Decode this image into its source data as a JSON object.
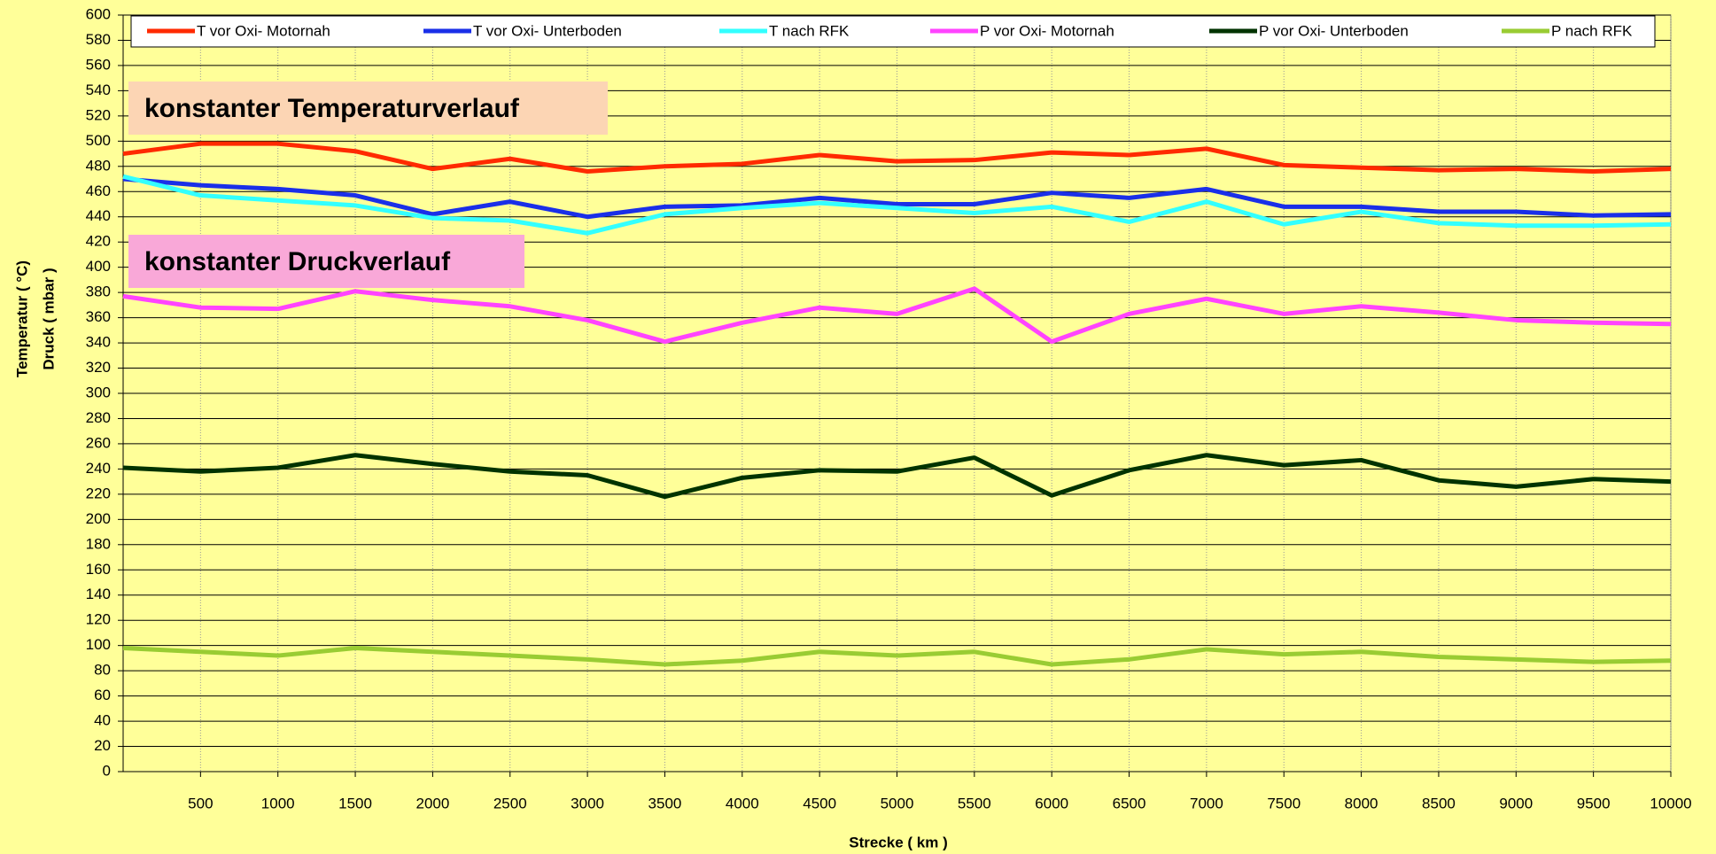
{
  "chart_data": {
    "type": "line",
    "x": [
      0,
      500,
      1000,
      1500,
      2000,
      2500,
      3000,
      3500,
      4000,
      4500,
      5000,
      5500,
      6000,
      6500,
      7000,
      7500,
      8000,
      8500,
      9000,
      9500,
      10000
    ],
    "series": [
      {
        "name": "T vor Oxi- Motornah",
        "color": "#ff2a00",
        "values": [
          490,
          498,
          498,
          492,
          478,
          486,
          476,
          480,
          482,
          489,
          484,
          485,
          491,
          489,
          494,
          481,
          479,
          477,
          478,
          476,
          478
        ]
      },
      {
        "name": "T vor Oxi- Unterboden",
        "color": "#1a2fe8",
        "values": [
          470,
          465,
          462,
          457,
          442,
          452,
          440,
          448,
          449,
          455,
          450,
          450,
          459,
          455,
          462,
          448,
          448,
          444,
          444,
          441,
          442
        ]
      },
      {
        "name": "T nach RFK",
        "color": "#33ffff",
        "values": [
          472,
          457,
          453,
          449,
          439,
          437,
          427,
          442,
          447,
          451,
          447,
          443,
          448,
          436,
          452,
          434,
          444,
          435,
          433,
          433,
          434
        ]
      },
      {
        "name": "P vor Oxi- Motornah",
        "color": "#ff44ff",
        "values": [
          377,
          368,
          367,
          381,
          374,
          369,
          358,
          341,
          356,
          368,
          363,
          383,
          341,
          363,
          375,
          363,
          369,
          364,
          358,
          356,
          355
        ]
      },
      {
        "name": "P vor Oxi- Unterboden",
        "color": "#003300",
        "values": [
          241,
          238,
          241,
          251,
          244,
          238,
          235,
          218,
          233,
          239,
          238,
          249,
          219,
          239,
          251,
          243,
          247,
          231,
          226,
          232,
          230
        ]
      },
      {
        "name": "P nach RFK",
        "color": "#99cc33",
        "values": [
          98,
          95,
          92,
          98,
          95,
          92,
          89,
          85,
          88,
          95,
          92,
          95,
          85,
          89,
          97,
          93,
          95,
          91,
          89,
          87,
          88
        ]
      }
    ],
    "xlabel": "Strecke ( km )",
    "ylabel": [
      "Temperatur ( °C)",
      "Druck ( mbar )"
    ],
    "annotations": [
      {
        "text": "konstanter Temperaturverlauf",
        "color": "#fcd5b4"
      },
      {
        "text": "konstanter Druckverlauf",
        "color": "#f9a8d8"
      }
    ],
    "xlim": [
      0,
      10000
    ],
    "xticks": [
      500,
      1000,
      1500,
      2000,
      2500,
      3000,
      3500,
      4000,
      4500,
      5000,
      5500,
      6000,
      6500,
      7000,
      7500,
      8000,
      8500,
      9000,
      9500,
      10000
    ],
    "ylim": [
      0,
      600
    ],
    "yticks": [
      0,
      20,
      40,
      60,
      80,
      100,
      120,
      140,
      160,
      180,
      200,
      220,
      240,
      260,
      280,
      300,
      320,
      340,
      360,
      380,
      400,
      420,
      440,
      460,
      480,
      500,
      520,
      540,
      560,
      580,
      600
    ],
    "grid": true,
    "legend": "top"
  }
}
